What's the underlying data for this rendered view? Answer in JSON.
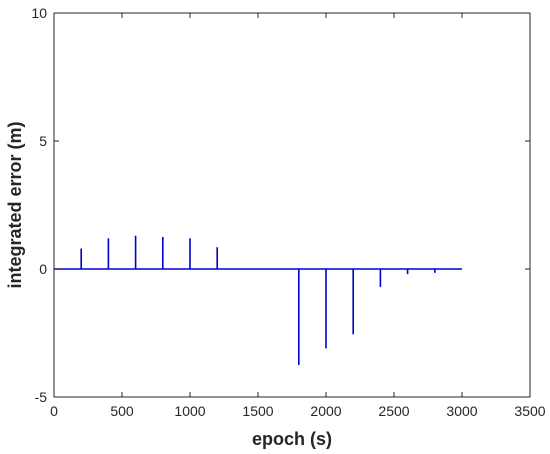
{
  "chart_data": {
    "type": "line",
    "title": "",
    "xlabel": "epoch (s)",
    "ylabel": "integrated error (m)",
    "xlim": [
      0,
      3500
    ],
    "ylim": [
      -5,
      10
    ],
    "xticks": [
      0,
      500,
      1000,
      1500,
      2000,
      2500,
      3000,
      3500
    ],
    "yticks": [
      -5,
      0,
      5,
      10
    ],
    "xtick_labels": [
      "0",
      "500",
      "1000",
      "1500",
      "2000",
      "2500",
      "3000",
      "3500"
    ],
    "ytick_labels": [
      "-5",
      "0",
      "5",
      "10"
    ],
    "grid": false,
    "line_color": "#0000cc",
    "baseline": {
      "x": [
        0,
        3000
      ],
      "y": [
        0,
        0
      ]
    },
    "spikes": [
      {
        "x": 200,
        "y": 0.8
      },
      {
        "x": 400,
        "y": 1.2
      },
      {
        "x": 600,
        "y": 1.3
      },
      {
        "x": 800,
        "y": 1.25
      },
      {
        "x": 1000,
        "y": 1.2
      },
      {
        "x": 1200,
        "y": 0.85
      },
      {
        "x": 1800,
        "y": -3.75
      },
      {
        "x": 2000,
        "y": -3.1
      },
      {
        "x": 2200,
        "y": -2.55
      },
      {
        "x": 2400,
        "y": -0.7
      },
      {
        "x": 2600,
        "y": -0.2
      },
      {
        "x": 2800,
        "y": -0.15
      }
    ]
  }
}
